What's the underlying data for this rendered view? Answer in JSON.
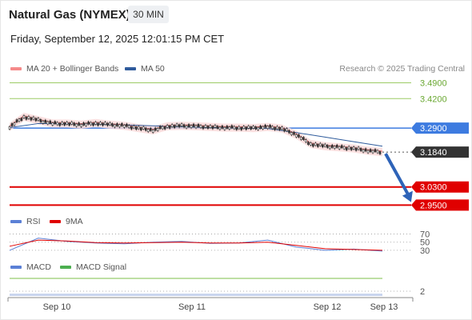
{
  "header": {
    "title": "Natural Gas (NYMEX)",
    "timeframe": "30 MIN",
    "datetime": "Friday, September 12, 2025 12:01:15 PM CET"
  },
  "legend": {
    "items": [
      {
        "label": "MA 20 + Bollinger Bands",
        "color": "#f58a8a"
      },
      {
        "label": "MA 50",
        "color": "#2f5b9c"
      }
    ],
    "credit": "Research © 2025 Trading Central"
  },
  "chart_data": [
    {
      "type": "line",
      "panel": "price",
      "x_ticks": [
        "Sep 10",
        "Sep 11",
        "Sep 12",
        "Sep 13"
      ],
      "ylim": [
        2.93,
        3.52
      ],
      "levels": [
        {
          "label": "3.4900",
          "value": 3.49,
          "color": "#9ccc65",
          "style": "resistance"
        },
        {
          "label": "3.4200",
          "value": 3.42,
          "color": "#9ccc65",
          "style": "resistance"
        },
        {
          "label": "3.2900",
          "value": 3.29,
          "color": "#3d7be0",
          "style": "pivot"
        },
        {
          "label": "3.1840",
          "value": 3.184,
          "color": "#333333",
          "style": "last"
        },
        {
          "label": "3.0300",
          "value": 3.03,
          "color": "#e00000",
          "style": "support"
        },
        {
          "label": "2.9500",
          "value": 2.95,
          "color": "#e00000",
          "style": "support"
        }
      ],
      "series": [
        {
          "name": "MA 50",
          "x": [
            0,
            6,
            12,
            18,
            24,
            30,
            36,
            42,
            48,
            54,
            60,
            66,
            72,
            78
          ],
          "values": [
            3.292,
            3.31,
            3.31,
            3.308,
            3.304,
            3.3,
            3.296,
            3.292,
            3.29,
            3.288,
            3.27,
            3.25,
            3.23,
            3.21
          ]
        },
        {
          "name": "Price",
          "x": [
            0,
            3,
            6,
            9,
            12,
            15,
            18,
            21,
            24,
            27,
            30,
            33,
            36,
            39,
            42,
            45,
            48,
            51,
            54,
            57,
            60,
            63,
            66,
            69,
            72,
            75,
            78
          ],
          "values": [
            3.295,
            3.34,
            3.325,
            3.31,
            3.31,
            3.305,
            3.312,
            3.305,
            3.3,
            3.29,
            3.28,
            3.298,
            3.3,
            3.298,
            3.295,
            3.292,
            3.292,
            3.29,
            3.295,
            3.288,
            3.26,
            3.22,
            3.21,
            3.205,
            3.2,
            3.19,
            3.184
          ]
        }
      ],
      "arrow": {
        "from": {
          "x": 78,
          "y": 3.184
        },
        "to": {
          "x": 82,
          "y": 2.97
        },
        "color": "#2e63b8"
      }
    },
    {
      "type": "line",
      "panel": "rsi",
      "legend": [
        {
          "label": "RSI",
          "color": "#5b80d6"
        },
        {
          "label": "9MA",
          "color": "#e00000"
        }
      ],
      "levels": [
        {
          "label": "70",
          "value": 70
        },
        {
          "label": "50",
          "value": 50
        },
        {
          "label": "30",
          "value": 30
        }
      ],
      "ylim": [
        20,
        75
      ],
      "series": [
        {
          "name": "RSI",
          "x": [
            0,
            6,
            12,
            18,
            24,
            30,
            36,
            42,
            48,
            54,
            60,
            66,
            72,
            78
          ],
          "values": [
            30,
            60,
            52,
            48,
            46,
            50,
            52,
            47,
            48,
            55,
            38,
            30,
            33,
            28
          ]
        },
        {
          "name": "9MA",
          "x": [
            0,
            6,
            12,
            18,
            24,
            30,
            36,
            42,
            48,
            54,
            60,
            66,
            72,
            78
          ],
          "values": [
            40,
            55,
            53,
            49,
            48,
            49,
            50,
            48,
            48,
            50,
            42,
            34,
            32,
            30
          ]
        }
      ]
    },
    {
      "type": "line",
      "panel": "macd",
      "legend": [
        {
          "label": "MACD",
          "color": "#5b80d6"
        },
        {
          "label": "MACD Signal",
          "color": "#4caf50"
        }
      ],
      "levels": [
        {
          "label": "2",
          "value": 2
        }
      ],
      "ylim": [
        1.9,
        2.3
      ],
      "series": [
        {
          "name": "MACD Signal",
          "x": [
            0,
            78
          ],
          "values": [
            2.2,
            2.2
          ]
        }
      ]
    }
  ]
}
